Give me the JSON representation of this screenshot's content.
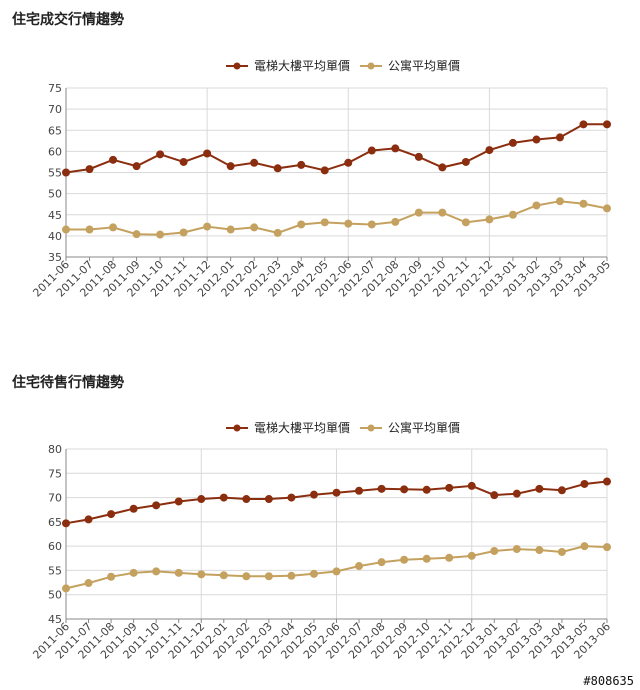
{
  "watermark": "#808635",
  "colors": {
    "series1": "#8b2e0f",
    "series2": "#c4a15e",
    "grid": "#d9d9d9",
    "axis": "#888888"
  },
  "chart_data": [
    {
      "type": "line",
      "title": "住宅成交行情趨勢",
      "xlabel": "",
      "ylabel": "",
      "ylim": [
        35,
        75
      ],
      "yticks": [
        35,
        40,
        45,
        50,
        55,
        60,
        65,
        70,
        75
      ],
      "grid": true,
      "legend_position": "top",
      "categories": [
        "2011-06",
        "2011-07",
        "2011-08",
        "2011-09",
        "2011-10",
        "2011-11",
        "2011-12",
        "2012-01",
        "2012-02",
        "2012-03",
        "2012-04",
        "2012-05",
        "2012-06",
        "2012-07",
        "2012-08",
        "2012-09",
        "2012-10",
        "2012-11",
        "2012-12",
        "2013-01",
        "2013-02",
        "2013-03",
        "2013-04",
        "2013-05"
      ],
      "series": [
        {
          "name": "電梯大樓平均單價",
          "values": [
            55.0,
            55.8,
            58.0,
            56.5,
            59.3,
            57.5,
            59.5,
            56.5,
            57.3,
            56.0,
            56.8,
            55.5,
            57.3,
            60.2,
            60.7,
            58.7,
            56.2,
            57.5,
            60.3,
            62.0,
            62.8,
            63.3,
            66.4,
            66.4
          ]
        },
        {
          "name": "公寓平均單價",
          "values": [
            41.5,
            41.5,
            42.0,
            40.4,
            40.3,
            40.8,
            42.2,
            41.5,
            42.0,
            40.7,
            42.7,
            43.2,
            42.9,
            42.7,
            43.3,
            45.5,
            45.5,
            43.2,
            43.9,
            45.0,
            47.2,
            48.2,
            47.6,
            46.5
          ]
        }
      ]
    },
    {
      "type": "line",
      "title": "住宅待售行情趨勢",
      "xlabel": "",
      "ylabel": "",
      "ylim": [
        45,
        80
      ],
      "yticks": [
        45,
        50,
        55,
        60,
        65,
        70,
        75,
        80
      ],
      "grid": true,
      "legend_position": "top",
      "categories": [
        "2011-06",
        "2011-07",
        "2011-08",
        "2011-09",
        "2011-10",
        "2011-11",
        "2011-12",
        "2012-01",
        "2012-02",
        "2012-03",
        "2012-04",
        "2012-05",
        "2012-06",
        "2012-07",
        "2012-08",
        "2012-09",
        "2012-10",
        "2012-11",
        "2012-12",
        "2013-01",
        "2013-02",
        "2013-03",
        "2013-04",
        "2013-05",
        "2013-06"
      ],
      "series": [
        {
          "name": "電梯大樓平均單價",
          "values": [
            64.7,
            65.5,
            66.6,
            67.7,
            68.4,
            69.2,
            69.7,
            70.0,
            69.7,
            69.7,
            70.0,
            70.6,
            71.0,
            71.4,
            71.8,
            71.7,
            71.6,
            72.0,
            72.4,
            70.5,
            70.8,
            71.8,
            71.5,
            72.8,
            73.3
          ]
        },
        {
          "name": "公寓平均單價",
          "values": [
            51.3,
            52.4,
            53.7,
            54.5,
            54.8,
            54.5,
            54.2,
            54.0,
            53.8,
            53.8,
            53.9,
            54.3,
            54.8,
            55.9,
            56.7,
            57.2,
            57.4,
            57.6,
            58.0,
            59.0,
            59.4,
            59.2,
            58.8,
            60.0,
            59.8
          ]
        }
      ]
    }
  ]
}
